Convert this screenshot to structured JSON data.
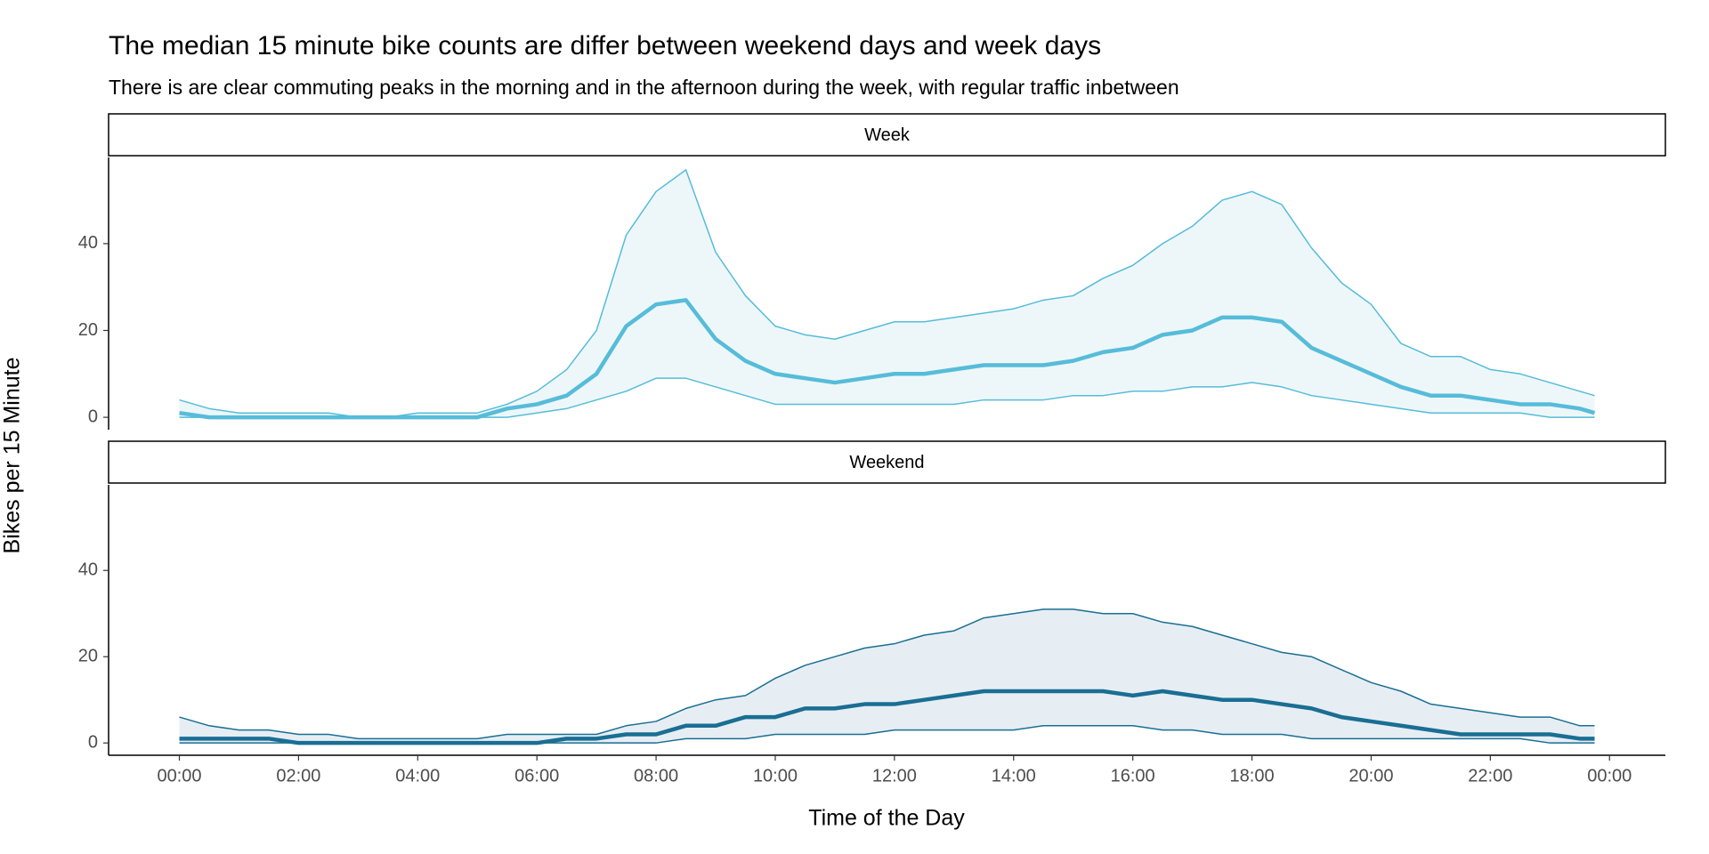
{
  "chart_data": {
    "type": "ribbon",
    "title": "The median 15 minute bike counts are differ between weekend days and week days",
    "subtitle": "There is are clear commuting peaks in the morning and in the afternoon during the week, with regular traffic inbetween",
    "x_label": "Time of the Day",
    "y_label": "Bikes per 15 Minute",
    "x": [
      0,
      0.5,
      1,
      1.5,
      2,
      2.5,
      3,
      3.5,
      4,
      4.5,
      5,
      5.5,
      6,
      6.5,
      7,
      7.5,
      8,
      8.5,
      9,
      9.5,
      10,
      10.5,
      11,
      11.5,
      12,
      12.5,
      13,
      13.5,
      14,
      14.5,
      15,
      15.5,
      16,
      16.5,
      17,
      17.5,
      18,
      18.5,
      19,
      19.5,
      20,
      20.5,
      21,
      21.5,
      22,
      22.5,
      23,
      23.5,
      23.75
    ],
    "xlim": [
      -1.1875,
      24.9375
    ],
    "xticks": [
      {
        "value": 0,
        "label": "00:00"
      },
      {
        "value": 2,
        "label": "02:00"
      },
      {
        "value": 4,
        "label": "04:00"
      },
      {
        "value": 6,
        "label": "06:00"
      },
      {
        "value": 8,
        "label": "08:00"
      },
      {
        "value": 10,
        "label": "10:00"
      },
      {
        "value": 12,
        "label": "12:00"
      },
      {
        "value": 14,
        "label": "14:00"
      },
      {
        "value": 16,
        "label": "16:00"
      },
      {
        "value": 18,
        "label": "18:00"
      },
      {
        "value": 20,
        "label": "20:00"
      },
      {
        "value": 22,
        "label": "22:00"
      },
      {
        "value": 24,
        "label": "00:00"
      }
    ],
    "ylim": [
      -2.85,
      59.85
    ],
    "yticks": [
      0,
      20,
      40
    ],
    "facets": [
      {
        "name": "Week",
        "color": "#56bcd9",
        "fill": "#edf7fa",
        "median": [
          1,
          0,
          0,
          0,
          0,
          0,
          0,
          0,
          0,
          0,
          0,
          2,
          3,
          5,
          10,
          21,
          26,
          27,
          18,
          13,
          10,
          9,
          8,
          9,
          10,
          10,
          11,
          12,
          12,
          12,
          13,
          15,
          16,
          19,
          20,
          23,
          23,
          22,
          16,
          13,
          10,
          7,
          5,
          5,
          4,
          3,
          3,
          2,
          1
        ],
        "upper": [
          4,
          2,
          1,
          1,
          1,
          1,
          0,
          0,
          1,
          1,
          1,
          3,
          6,
          11,
          20,
          42,
          52,
          57,
          38,
          28,
          21,
          19,
          18,
          20,
          22,
          22,
          23,
          24,
          25,
          27,
          28,
          32,
          35,
          40,
          44,
          50,
          52,
          49,
          39,
          31,
          26,
          17,
          14,
          14,
          11,
          10,
          8,
          6,
          5
        ],
        "lower": [
          0,
          0,
          0,
          0,
          0,
          0,
          0,
          0,
          0,
          0,
          0,
          0,
          1,
          2,
          4,
          6,
          9,
          9,
          7,
          5,
          3,
          3,
          3,
          3,
          3,
          3,
          3,
          4,
          4,
          4,
          5,
          5,
          6,
          6,
          7,
          7,
          8,
          7,
          5,
          4,
          3,
          2,
          1,
          1,
          1,
          1,
          0,
          0,
          0
        ]
      },
      {
        "name": "Weekend",
        "color": "#1a6e93",
        "fill": "#e6eef4",
        "median": [
          1,
          1,
          1,
          1,
          0,
          0,
          0,
          0,
          0,
          0,
          0,
          0,
          0,
          1,
          1,
          2,
          2,
          4,
          4,
          6,
          6,
          8,
          8,
          9,
          9,
          10,
          11,
          12,
          12,
          12,
          12,
          12,
          11,
          12,
          11,
          10,
          10,
          9,
          8,
          6,
          5,
          4,
          3,
          2,
          2,
          2,
          2,
          1,
          1
        ],
        "upper": [
          6,
          4,
          3,
          3,
          2,
          2,
          1,
          1,
          1,
          1,
          1,
          2,
          2,
          2,
          2,
          4,
          5,
          8,
          10,
          11,
          15,
          18,
          20,
          22,
          23,
          25,
          26,
          29,
          30,
          31,
          31,
          30,
          30,
          28,
          27,
          25,
          23,
          21,
          20,
          17,
          14,
          12,
          9,
          8,
          7,
          6,
          6,
          4,
          4
        ],
        "lower": [
          0,
          0,
          0,
          0,
          0,
          0,
          0,
          0,
          0,
          0,
          0,
          0,
          0,
          0,
          0,
          0,
          0,
          1,
          1,
          1,
          2,
          2,
          2,
          2,
          3,
          3,
          3,
          3,
          3,
          4,
          4,
          4,
          4,
          3,
          3,
          2,
          2,
          2,
          1,
          1,
          1,
          1,
          1,
          1,
          1,
          1,
          0,
          0,
          0
        ]
      }
    ]
  }
}
